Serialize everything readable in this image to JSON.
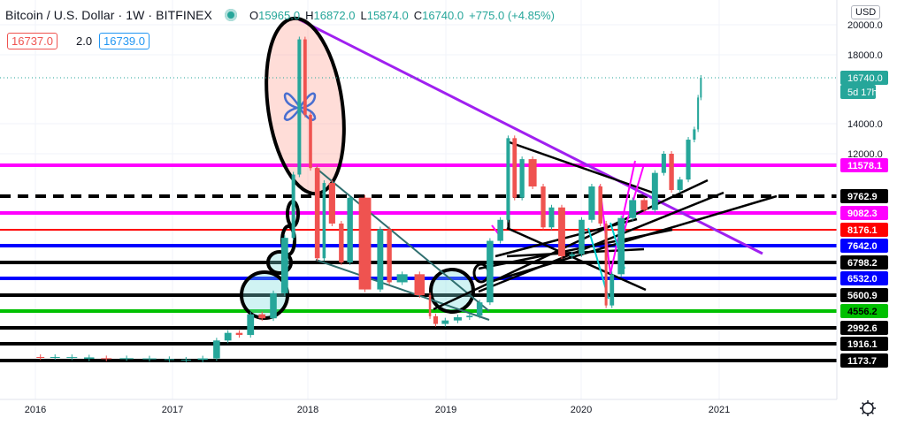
{
  "header": {
    "symbol": "Bitcoin / U.S. Dollar · 1W · BITFINEX",
    "open_label": "O",
    "open": "15965.0",
    "high_label": "H",
    "high": "16872.0",
    "low_label": "L",
    "low": "15874.0",
    "close_label": "C",
    "close": "16740.0",
    "change": "+775.0 (+4.85%)"
  },
  "trade": {
    "sell": "16737.0",
    "spread": "2.0",
    "buy": "16739.0"
  },
  "currency": "USD",
  "countdown": "5d 17h",
  "settings_icon": "gear-icon",
  "chart_data": {
    "type": "candlestick",
    "title": "Bitcoin / U.S. Dollar · 1W · BITFINEX",
    "x_ticks": [
      "2016",
      "2017",
      "2018",
      "2019",
      "2020",
      "2021"
    ],
    "y_ticks": [
      "20000.0",
      "18000.0",
      "14000.0",
      "12000.0"
    ],
    "y_scale": "log",
    "last_price": "16740.0",
    "series": [
      {
        "points": [
          [
            "2015-12-28",
            430
          ],
          [
            "2016-02-01",
            380
          ],
          [
            "2016-03-15",
            410
          ],
          [
            "2016-05-01",
            450
          ],
          [
            "2016-06-15",
            680
          ],
          [
            "2016-08-01",
            580
          ],
          [
            "2016-10-01",
            615
          ],
          [
            "2016-12-01",
            750
          ],
          [
            "2017-01-15",
            880
          ],
          [
            "2017-03-01",
            1200
          ],
          [
            "2017-04-15",
            1250
          ],
          [
            "2017-05-15",
            2100
          ],
          [
            "2017-06-15",
            2600
          ],
          [
            "2017-07-15",
            2450
          ],
          [
            "2017-08-15",
            4200
          ],
          [
            "2017-09-15",
            3800
          ],
          [
            "2017-10-15",
            5700
          ],
          [
            "2017-11-15",
            7900
          ],
          [
            "2017-12-01",
            11000
          ],
          [
            "2017-12-17",
            19000
          ],
          [
            "2018-01-01",
            14500
          ],
          [
            "2018-01-15",
            11400
          ],
          [
            "2018-02-06",
            7000
          ],
          [
            "2018-02-20",
            10500
          ],
          [
            "2018-03-20",
            8500
          ],
          [
            "2018-04-10",
            6800
          ],
          [
            "2018-05-05",
            9700
          ],
          [
            "2018-06-28",
            5900
          ],
          [
            "2018-07-25",
            8200
          ],
          [
            "2018-08-15",
            6300
          ],
          [
            "2018-10-01",
            6600
          ],
          [
            "2018-11-15",
            5600
          ],
          [
            "2018-11-25",
            4000
          ],
          [
            "2018-12-15",
            3300
          ],
          [
            "2019-01-15",
            3600
          ],
          [
            "2019-02-20",
            3900
          ],
          [
            "2019-03-20",
            4050
          ],
          [
            "2019-04-15",
            5100
          ],
          [
            "2019-05-15",
            7800
          ],
          [
            "2019-06-10",
            8700
          ],
          [
            "2019-06-26",
            13000
          ],
          [
            "2019-07-15",
            9700
          ],
          [
            "2019-08-05",
            11800
          ],
          [
            "2019-09-10",
            10300
          ],
          [
            "2019-10-01",
            8300
          ],
          [
            "2019-10-25",
            9300
          ],
          [
            "2019-11-25",
            7100
          ],
          [
            "2019-12-20",
            7200
          ],
          [
            "2020-01-15",
            8700
          ],
          [
            "2020-02-12",
            10300
          ],
          [
            "2020-03-01",
            8500
          ],
          [
            "2020-03-13",
            4900
          ],
          [
            "2020-04-01",
            6600
          ],
          [
            "2020-05-01",
            8800
          ],
          [
            "2020-06-01",
            9600
          ],
          [
            "2020-07-01",
            9200
          ],
          [
            "2020-07-28",
            11100
          ],
          [
            "2020-08-17",
            12000
          ],
          [
            "2020-09-07",
            10100
          ],
          [
            "2020-10-01",
            10700
          ],
          [
            "2020-10-21",
            12900
          ],
          [
            "2020-11-02",
            13600
          ],
          [
            "2020-11-10",
            15500
          ],
          [
            "2020-11-17",
            16740
          ]
        ]
      }
    ],
    "horizontal_levels": [
      {
        "label": "11578.1",
        "value": 11578.1,
        "color": "#ff00ff",
        "style": "solid"
      },
      {
        "label": "9762.9",
        "value": 9762.9,
        "color": "#000000",
        "style": "dashed"
      },
      {
        "label": "9082.3",
        "value": 9082.3,
        "color": "#ff00ff",
        "style": "solid"
      },
      {
        "label": "8176.1",
        "value": 8176.1,
        "color": "#ff0000",
        "style": "solid"
      },
      {
        "label": "7642.0",
        "value": 7642.0,
        "color": "#0000ff",
        "style": "solid"
      },
      {
        "label": "6798.2",
        "value": 6798.2,
        "color": "#000000",
        "style": "solid"
      },
      {
        "label": "6532.0",
        "value": 6532.0,
        "color": "#0000ff",
        "style": "solid"
      },
      {
        "label": "5600.9",
        "value": 5600.9,
        "color": "#000000",
        "style": "solid"
      },
      {
        "label": "4556.2",
        "value": 4556.2,
        "color": "#00c000",
        "style": "solid"
      },
      {
        "label": "2992.6",
        "value": 2992.6,
        "color": "#000000",
        "style": "solid"
      },
      {
        "label": "1916.1",
        "value": 1916.1,
        "color": "#000000",
        "style": "solid"
      },
      {
        "label": "1173.7",
        "value": 1173.7,
        "color": "#000000",
        "style": "solid"
      }
    ],
    "annotations": [
      "butterfly-icon"
    ]
  }
}
